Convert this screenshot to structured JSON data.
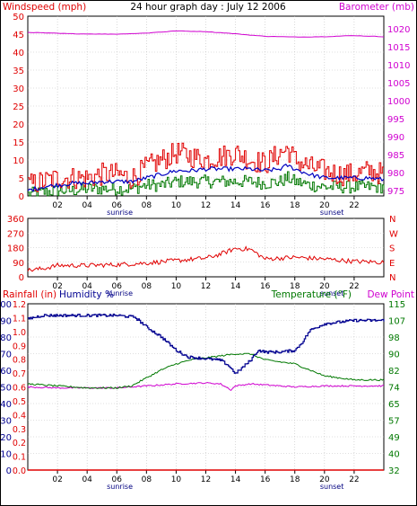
{
  "title": "24 hour graph day : July 12 2006",
  "colors": {
    "wind": "#e00000",
    "gust_avg": "#0000c0",
    "green": "#007800",
    "barometer": "#d000d0",
    "humidity": "#000090",
    "rain": "#e00000",
    "grid": "#c0c0c0",
    "frame": "#000000"
  },
  "chart_data": [
    {
      "type": "line",
      "panel": "wind-barometer",
      "left_label": "Windspeed (mph)",
      "right_label": "Barometer (mb)",
      "x_ticks": [
        "02",
        "04",
        "06",
        "08",
        "10",
        "12",
        "14",
        "16",
        "18",
        "20",
        "22"
      ],
      "x_annotations": [
        "sunrise",
        "sunset"
      ],
      "left_ticks": [
        "0",
        "5",
        "10",
        "15",
        "20",
        "25",
        "30",
        "35",
        "40",
        "45",
        "50"
      ],
      "right_ticks": [
        "975",
        "980",
        "985",
        "990",
        "995",
        "1000",
        "1005",
        "1010",
        "1015",
        "1020"
      ],
      "ylim_left": [
        0,
        50
      ],
      "ylim_right": [
        973.5,
        1023.5
      ],
      "x_range_hours": [
        0,
        24
      ],
      "series": {
        "wind_speed_peak": [
          [
            0,
            3
          ],
          [
            1,
            4
          ],
          [
            2,
            5
          ],
          [
            3,
            5
          ],
          [
            4,
            5
          ],
          [
            5,
            6
          ],
          [
            6,
            6
          ],
          [
            7,
            5
          ],
          [
            8,
            8
          ],
          [
            9,
            10
          ],
          [
            10,
            12
          ],
          [
            11,
            11
          ],
          [
            12,
            10
          ],
          [
            13,
            11
          ],
          [
            14,
            12
          ],
          [
            15,
            10
          ],
          [
            16,
            9
          ],
          [
            17,
            12
          ],
          [
            17.5,
            13
          ],
          [
            18,
            10
          ],
          [
            19,
            8
          ],
          [
            20,
            7
          ],
          [
            21,
            6
          ],
          [
            22,
            6
          ],
          [
            23,
            7
          ],
          [
            24,
            6
          ]
        ],
        "wind_speed_avg": [
          [
            0,
            1.5
          ],
          [
            1,
            2.5
          ],
          [
            2,
            3
          ],
          [
            3,
            3.5
          ],
          [
            4,
            3.5
          ],
          [
            5,
            4
          ],
          [
            6,
            4
          ],
          [
            7,
            4
          ],
          [
            8,
            5
          ],
          [
            9,
            6
          ],
          [
            10,
            7
          ],
          [
            11,
            7
          ],
          [
            12,
            7.5
          ],
          [
            13,
            7.5
          ],
          [
            14,
            7.5
          ],
          [
            15,
            7.5
          ],
          [
            16,
            7
          ],
          [
            17,
            7.5
          ],
          [
            17.5,
            8.5
          ],
          [
            18,
            7.5
          ],
          [
            19,
            6
          ],
          [
            20,
            5
          ],
          [
            21,
            5
          ],
          [
            22,
            5
          ],
          [
            23,
            5
          ],
          [
            24,
            4.5
          ]
        ],
        "wind_speed_min": [
          [
            0,
            0.5
          ],
          [
            1,
            1
          ],
          [
            2,
            1.5
          ],
          [
            3,
            1.5
          ],
          [
            4,
            2
          ],
          [
            5,
            2
          ],
          [
            6,
            2
          ],
          [
            7,
            2
          ],
          [
            8,
            3
          ],
          [
            9,
            3
          ],
          [
            10,
            4
          ],
          [
            11,
            4
          ],
          [
            12,
            4
          ],
          [
            13,
            4
          ],
          [
            14,
            4
          ],
          [
            15,
            4
          ],
          [
            16,
            3.5
          ],
          [
            17,
            4
          ],
          [
            17.5,
            5
          ],
          [
            18,
            4
          ],
          [
            19,
            3
          ],
          [
            20,
            2.5
          ],
          [
            21,
            2.5
          ],
          [
            22,
            2.5
          ],
          [
            23,
            2.5
          ],
          [
            24,
            2.5
          ]
        ],
        "barometer": [
          [
            0,
            1019
          ],
          [
            3,
            1018.6
          ],
          [
            6,
            1018.5
          ],
          [
            8,
            1018.8
          ],
          [
            10,
            1019.4
          ],
          [
            12,
            1019.2
          ],
          [
            14,
            1018.6
          ],
          [
            16,
            1017.9
          ],
          [
            18,
            1017.7
          ],
          [
            20,
            1017.8
          ],
          [
            22,
            1018.1
          ],
          [
            24,
            1017.8
          ]
        ]
      }
    },
    {
      "type": "line",
      "panel": "wind-direction",
      "left_ticks": [
        "0",
        "90",
        "180",
        "270",
        "360"
      ],
      "right_ticks": [
        "N",
        "E",
        "S",
        "W",
        "N"
      ],
      "ylim": [
        0,
        360
      ],
      "x_ticks": [
        "02",
        "04",
        "06",
        "08",
        "10",
        "12",
        "14",
        "16",
        "18",
        "20",
        "22"
      ],
      "x_annotations": [
        "sunrise",
        "sunset"
      ],
      "series": {
        "direction": [
          [
            0,
            40
          ],
          [
            1,
            50
          ],
          [
            2,
            70
          ],
          [
            4,
            70
          ],
          [
            6,
            75
          ],
          [
            8,
            85
          ],
          [
            10,
            100
          ],
          [
            12,
            115
          ],
          [
            13,
            140
          ],
          [
            14,
            175
          ],
          [
            15,
            170
          ],
          [
            16,
            110
          ],
          [
            18,
            120
          ],
          [
            20,
            110
          ],
          [
            22,
            95
          ],
          [
            24,
            90
          ]
        ]
      }
    },
    {
      "type": "line",
      "panel": "rain-humidity-temperature",
      "rain_label": "Rainfall (in)",
      "humidity_label": "Humidity %",
      "temperature_label": "Temperature (°F)",
      "dewpoint_label": "Dew Point",
      "humidity_ticks": [
        "0",
        "10",
        "20",
        "30",
        "40",
        "50",
        "60",
        "70",
        "80",
        "90",
        "100"
      ],
      "rain_ticks": [
        "0.0",
        "0.1",
        "0.2",
        "0.3",
        "0.4",
        "0.5",
        "0.6",
        "0.7",
        "0.8",
        "0.9",
        "1.0",
        "1.1",
        "1.2"
      ],
      "temperature_ticks": [
        "32",
        "40",
        "49",
        "57",
        "65",
        "74",
        "82",
        "90",
        "98",
        "107",
        "115"
      ],
      "ylim_humidity": [
        0,
        100
      ],
      "ylim_temperature": [
        32,
        115
      ],
      "x_ticks": [
        "02",
        "04",
        "06",
        "08",
        "10",
        "12",
        "14",
        "16",
        "18",
        "20",
        "22"
      ],
      "x_annotations": [
        "sunrise",
        "sunset"
      ],
      "series": {
        "humidity": [
          [
            0,
            91
          ],
          [
            1,
            93
          ],
          [
            6,
            93
          ],
          [
            7.2,
            92
          ],
          [
            8,
            86
          ],
          [
            9,
            80
          ],
          [
            10,
            72
          ],
          [
            10.8,
            68
          ],
          [
            12,
            67
          ],
          [
            13,
            66
          ],
          [
            13.5,
            63
          ],
          [
            14,
            58
          ],
          [
            14.5,
            62
          ],
          [
            15,
            66
          ],
          [
            15.5,
            72
          ],
          [
            16,
            71
          ],
          [
            17,
            71
          ],
          [
            18,
            72
          ],
          [
            18.5,
            77
          ],
          [
            19,
            84
          ],
          [
            19.5,
            86
          ],
          [
            20,
            88
          ],
          [
            21,
            89
          ],
          [
            22,
            90
          ],
          [
            24,
            90
          ]
        ],
        "temperature": [
          [
            0,
            75
          ],
          [
            2,
            74
          ],
          [
            4,
            73
          ],
          [
            6,
            73
          ],
          [
            7,
            74
          ],
          [
            8,
            78
          ],
          [
            9,
            82
          ],
          [
            10,
            85
          ],
          [
            11,
            87
          ],
          [
            12,
            88
          ],
          [
            13,
            89
          ],
          [
            14,
            90
          ],
          [
            15,
            90
          ],
          [
            16,
            87
          ],
          [
            17,
            86
          ],
          [
            18,
            85
          ],
          [
            19,
            82
          ],
          [
            20,
            79
          ],
          [
            21,
            78
          ],
          [
            22,
            77
          ],
          [
            24,
            77
          ]
        ],
        "dew_point": [
          [
            0,
            73.5
          ],
          [
            2,
            73
          ],
          [
            6,
            73
          ],
          [
            8,
            74
          ],
          [
            10,
            75
          ],
          [
            12,
            75.5
          ],
          [
            13,
            75
          ],
          [
            13.7,
            72
          ],
          [
            14,
            74
          ],
          [
            15,
            75
          ],
          [
            17,
            74
          ],
          [
            18,
            73.5
          ],
          [
            20,
            74
          ],
          [
            22,
            74
          ],
          [
            24,
            74
          ]
        ],
        "rainfall": [
          [
            0,
            0
          ],
          [
            24,
            0
          ]
        ]
      }
    }
  ]
}
